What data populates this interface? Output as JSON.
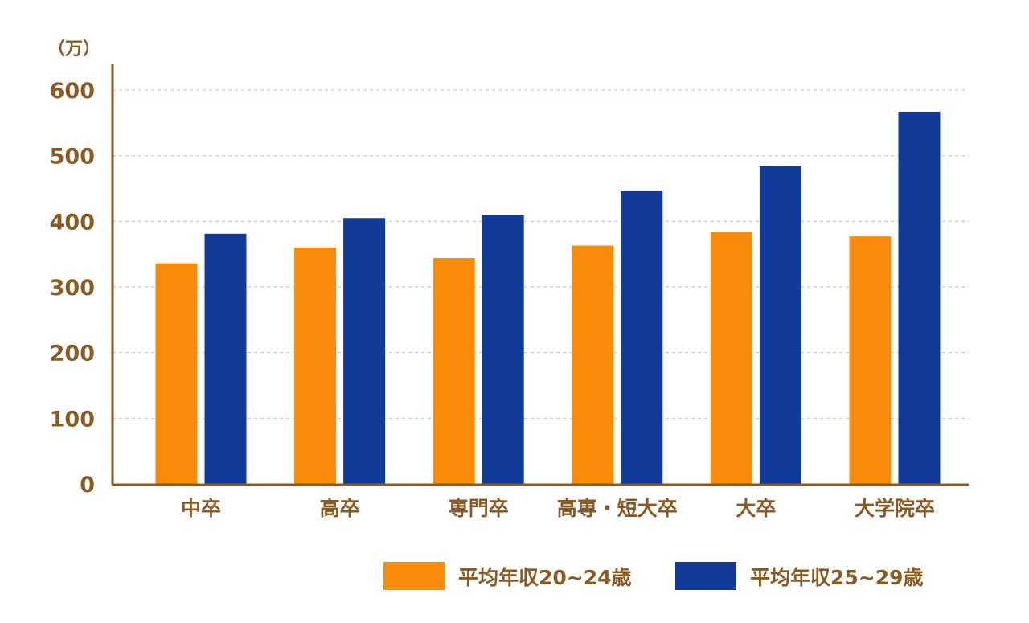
{
  "chart_data": {
    "type": "bar",
    "unit_label": "（万）",
    "categories": [
      "中卒",
      "高卒",
      "専門卒",
      "高専・短大卒",
      "大卒",
      "大学院卒"
    ],
    "series": [
      {
        "name": "平均年収20~24歳",
        "values": [
          336,
          360,
          344,
          363,
          384,
          377
        ],
        "color": "#f98b0a"
      },
      {
        "name": "平均年収25~29歳",
        "values": [
          381,
          405,
          409,
          446,
          484,
          567
        ],
        "color": "#123a99"
      }
    ],
    "ylim": [
      0,
      600
    ],
    "yticks": [
      0,
      100,
      200,
      300,
      400,
      500,
      600
    ],
    "grid": true,
    "legend": "bottom-right",
    "colors": {
      "axis": "#8a5a22",
      "text": "#8a5a22",
      "grid": "#d9c4a6"
    }
  }
}
